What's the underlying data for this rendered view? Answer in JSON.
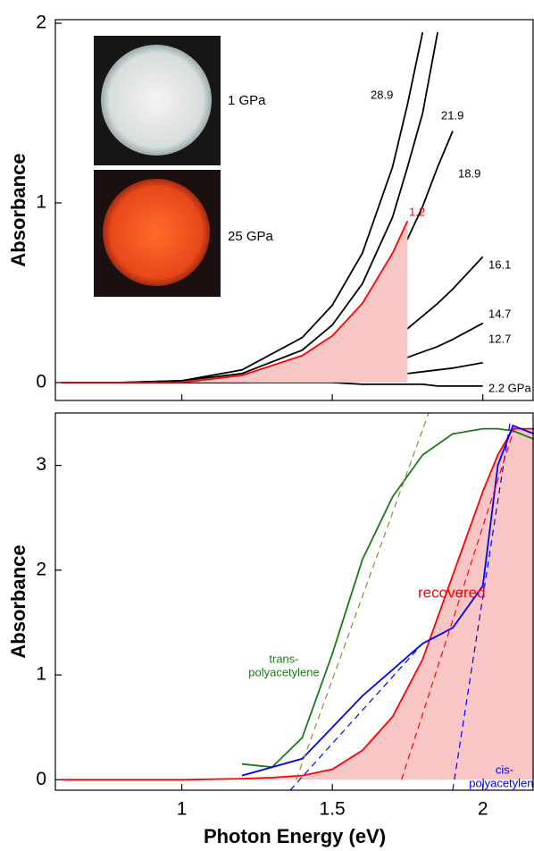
{
  "chart_data": [
    {
      "type": "line",
      "ylabel": "Absorbance",
      "x": [
        0.6,
        0.8,
        1.0,
        1.2,
        1.4,
        1.5,
        1.6,
        1.7,
        1.75,
        1.8,
        1.85,
        1.9,
        2.0
      ],
      "series": [
        {
          "name": "2.2 GPa",
          "color": "#000000",
          "values": [
            0,
            0,
            0,
            0,
            0,
            0,
            -0.01,
            -0.01,
            -0.01,
            -0.01,
            -0.02,
            -0.02,
            -0.02
          ]
        },
        {
          "name": "12.7",
          "color": "#000000",
          "values": [
            0,
            0,
            0,
            0,
            0.01,
            0.02,
            0.03,
            0.04,
            0.05,
            0.06,
            0.07,
            0.08,
            0.11
          ]
        },
        {
          "name": "14.7",
          "color": "#000000",
          "values": [
            0,
            0,
            0,
            0.01,
            0.03,
            0.05,
            0.08,
            0.12,
            0.14,
            0.17,
            0.2,
            0.24,
            0.33
          ]
        },
        {
          "name": "16.1",
          "color": "#000000",
          "values": [
            0,
            0,
            0,
            0.02,
            0.06,
            0.1,
            0.16,
            0.25,
            0.3,
            0.37,
            0.44,
            0.52,
            0.7
          ]
        },
        {
          "name": "18.9",
          "color": "#000000",
          "values": [
            0,
            0,
            0,
            0.03,
            0.12,
            0.22,
            0.38,
            0.62,
            0.8,
            0.98,
            1.2,
            1.4,
            null
          ]
        },
        {
          "name": "21.9",
          "color": "#000000",
          "values": [
            0,
            0,
            0.01,
            0.05,
            0.18,
            0.32,
            0.55,
            0.92,
            1.2,
            1.5,
            1.95,
            null,
            null
          ]
        },
        {
          "name": "28.9",
          "color": "#000000",
          "values": [
            0,
            0,
            0.01,
            0.07,
            0.25,
            0.43,
            0.72,
            1.2,
            1.55,
            1.95,
            null,
            null,
            null
          ]
        },
        {
          "name": "1.2",
          "color": "#ff0000",
          "fill": "#f9c6c6",
          "values": [
            0,
            0,
            0,
            0.04,
            0.15,
            0.26,
            0.44,
            0.72,
            0.9,
            null,
            null,
            null,
            null
          ]
        }
      ],
      "annotations": [
        "1 GPa",
        "25 GPa"
      ],
      "xlim": [
        0.58,
        2.17
      ],
      "ylim": [
        -0.1,
        2.02
      ],
      "yticks": [
        0,
        1,
        2
      ]
    },
    {
      "type": "line",
      "ylabel": "Absorbance",
      "xlabel": "Photon Energy (eV)",
      "x": [
        0.6,
        0.8,
        1.0,
        1.2,
        1.3,
        1.4,
        1.5,
        1.6,
        1.7,
        1.8,
        1.9,
        2.0,
        2.05,
        2.1,
        2.17
      ],
      "series": [
        {
          "name": "recovered",
          "color": "#ff0000",
          "fill": "#f9c6c6",
          "values": [
            0,
            0,
            0,
            0.01,
            0.02,
            0.04,
            0.1,
            0.28,
            0.6,
            1.15,
            1.95,
            2.75,
            3.1,
            3.35,
            3.35
          ]
        },
        {
          "name": [
            "trans-",
            "polyacetylene"
          ],
          "color": "#1a7a1a",
          "values": [
            null,
            null,
            null,
            0.15,
            0.12,
            0.4,
            1.2,
            2.1,
            2.7,
            3.1,
            3.3,
            3.35,
            3.35,
            3.33,
            3.25
          ]
        },
        {
          "name": [
            "cis-",
            "polyacetylene"
          ],
          "color": "#0000ff",
          "values": [
            null,
            null,
            null,
            0.04,
            0.12,
            0.2,
            0.5,
            0.8,
            1.05,
            1.3,
            1.45,
            1.85,
            3.0,
            3.38,
            3.3
          ]
        }
      ],
      "tangents": [
        {
          "color": "#8a8a3a",
          "x": [
            1.38,
            1.82
          ],
          "values": [
            0,
            3.5
          ]
        },
        {
          "color": "#0000ff",
          "x": [
            1.36,
            1.8
          ],
          "values": [
            -0.1,
            1.3
          ]
        },
        {
          "color": "#0000ff",
          "x": [
            1.9,
            2.09
          ],
          "values": [
            -0.1,
            3.4
          ]
        },
        {
          "color": "#ff0000",
          "x": [
            1.73,
            2.11
          ],
          "values": [
            0,
            3.4
          ]
        }
      ],
      "xlim": [
        0.58,
        2.17
      ],
      "xticks": [
        1,
        1.5,
        2
      ],
      "ylim": [
        -0.1,
        3.5
      ],
      "yticks": [
        0,
        1,
        2,
        3
      ]
    }
  ]
}
